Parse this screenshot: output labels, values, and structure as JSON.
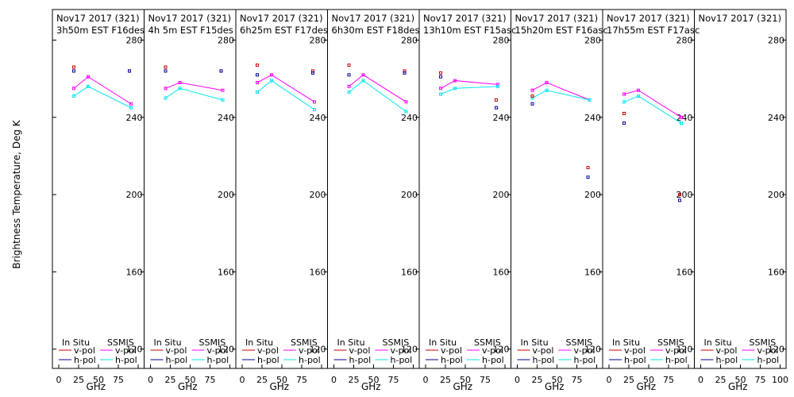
{
  "ylabel": "Brightness Temperature, Deg K",
  "xlabel": "GHz",
  "y_ticks": [
    "120",
    "160",
    "200",
    "240",
    "280"
  ],
  "x_ticks": [
    "0",
    "25",
    "50",
    "75",
    "100"
  ],
  "legend": {
    "in_situ": "In Situ",
    "ssmis": "SSMIS",
    "vpol": "v-pol",
    "hpol": "h-pol"
  },
  "colors": {
    "insitu_v": "#cc0000",
    "insitu_h": "#000099",
    "ssmis_v": "#ff00ff",
    "ssmis_h": "#00e5ee",
    "frame": "#000000"
  },
  "chart_data": {
    "type": "scatter",
    "ylim": [
      110,
      295
    ],
    "xlim": [
      0,
      100
    ],
    "grid": false,
    "legend_position": "bottom",
    "panels": [
      {
        "title1": "Nov17 2017 (321)",
        "title2": "3h50m  EST  F16des",
        "insitu_v": [
          [
            19,
            266
          ],
          [
            89,
            264
          ]
        ],
        "insitu_h": [
          [
            19,
            264
          ],
          [
            89,
            264
          ]
        ],
        "ssmis_v": [
          [
            19,
            255
          ],
          [
            37,
            261
          ],
          [
            91,
            247
          ]
        ],
        "ssmis_h": [
          [
            19,
            251
          ],
          [
            37,
            256
          ],
          [
            91,
            245
          ]
        ]
      },
      {
        "title1": "Nov17 2017 (321)",
        "title2": "4h 5m  EST  F15des",
        "insitu_v": [
          [
            19,
            266
          ],
          [
            89,
            264
          ]
        ],
        "insitu_h": [
          [
            19,
            264
          ],
          [
            89,
            264
          ]
        ],
        "ssmis_v": [
          [
            19,
            255
          ],
          [
            37,
            258
          ],
          [
            91,
            254
          ]
        ],
        "ssmis_h": [
          [
            19,
            250
          ],
          [
            37,
            255
          ],
          [
            91,
            249
          ]
        ]
      },
      {
        "title1": "Nov17 2017 (321)",
        "title2": "6h25m  EST  F17des",
        "insitu_v": [
          [
            19,
            267
          ],
          [
            89,
            264
          ]
        ],
        "insitu_h": [
          [
            19,
            262
          ],
          [
            89,
            263
          ]
        ],
        "ssmis_v": [
          [
            19,
            258
          ],
          [
            37,
            262
          ],
          [
            91,
            248
          ]
        ],
        "ssmis_h": [
          [
            19,
            253
          ],
          [
            37,
            259
          ],
          [
            91,
            244
          ]
        ]
      },
      {
        "title1": "Nov17 2017 (321)",
        "title2": "6h30m  EST  F18des",
        "insitu_v": [
          [
            19,
            267
          ],
          [
            89,
            264
          ]
        ],
        "insitu_h": [
          [
            19,
            262
          ],
          [
            89,
            263
          ]
        ],
        "ssmis_v": [
          [
            19,
            256
          ],
          [
            37,
            262
          ],
          [
            91,
            248
          ]
        ],
        "ssmis_h": [
          [
            19,
            253
          ],
          [
            37,
            259
          ],
          [
            91,
            243
          ]
        ]
      },
      {
        "title1": "Nov17 2017 (321)",
        "title2": "13h10m  EST  F15asc",
        "insitu_v": [
          [
            19,
            263
          ],
          [
            89,
            249
          ]
        ],
        "insitu_h": [
          [
            19,
            261
          ],
          [
            89,
            245
          ]
        ],
        "ssmis_v": [
          [
            19,
            255
          ],
          [
            37,
            259
          ],
          [
            91,
            257
          ]
        ],
        "ssmis_h": [
          [
            19,
            252
          ],
          [
            37,
            255
          ],
          [
            91,
            256
          ]
        ]
      },
      {
        "title1": "Nov17 2017 (321)",
        "title2": "15h20m  EST  F16asc",
        "insitu_v": [
          [
            19,
            251
          ],
          [
            89,
            214
          ]
        ],
        "insitu_h": [
          [
            19,
            247
          ],
          [
            89,
            209
          ]
        ],
        "ssmis_v": [
          [
            19,
            254
          ],
          [
            37,
            258
          ],
          [
            91,
            249
          ]
        ],
        "ssmis_h": [
          [
            19,
            250
          ],
          [
            37,
            254
          ],
          [
            91,
            249
          ]
        ]
      },
      {
        "title1": "Nov17 2017 (321)",
        "title2": "17h55m  EST  F17asc",
        "insitu_v": [
          [
            19,
            242
          ],
          [
            89,
            200
          ]
        ],
        "insitu_h": [
          [
            19,
            237
          ],
          [
            89,
            197
          ]
        ],
        "ssmis_v": [
          [
            19,
            252
          ],
          [
            37,
            254
          ],
          [
            91,
            240
          ]
        ],
        "ssmis_h": [
          [
            19,
            248
          ],
          [
            37,
            251
          ],
          [
            91,
            237
          ]
        ]
      },
      {
        "title1": "Nov17 2017 (321)",
        "title2": "",
        "insitu_v": [],
        "insitu_h": [],
        "ssmis_v": [],
        "ssmis_h": []
      }
    ]
  }
}
